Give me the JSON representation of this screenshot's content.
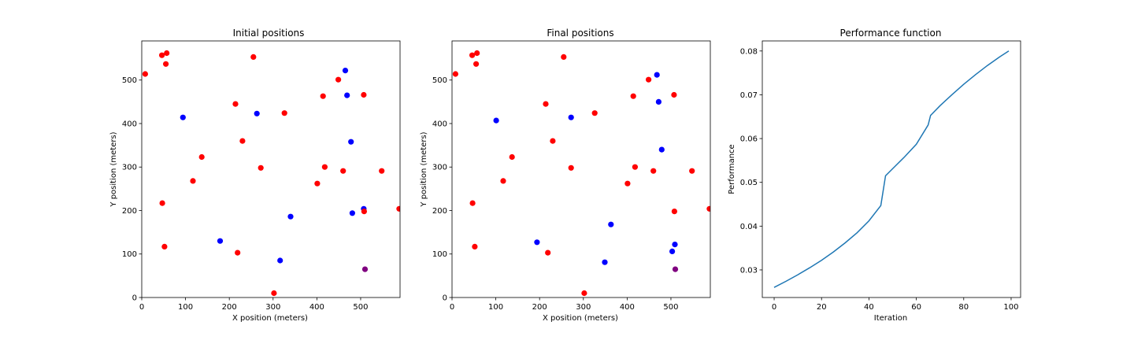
{
  "chart_data": [
    {
      "type": "scatter",
      "title": "Initial positions",
      "xlabel": "X position (meters)",
      "ylabel": "Y position (meters)",
      "xlim": [
        0,
        590
      ],
      "ylim": [
        0,
        590
      ],
      "xticks": [
        0,
        100,
        200,
        300,
        400,
        500
      ],
      "yticks": [
        0,
        100,
        200,
        300,
        400,
        500
      ],
      "grid": false,
      "colors": {
        "red": "#ff0000",
        "blue": "#0000ff",
        "purple": "#800080"
      },
      "points": [
        {
          "x": 8,
          "y": 514,
          "color": "red"
        },
        {
          "x": 46,
          "y": 557,
          "color": "red"
        },
        {
          "x": 57,
          "y": 562,
          "color": "red"
        },
        {
          "x": 55,
          "y": 537,
          "color": "red"
        },
        {
          "x": 255,
          "y": 553,
          "color": "red"
        },
        {
          "x": 465,
          "y": 522,
          "color": "blue"
        },
        {
          "x": 449,
          "y": 501,
          "color": "red"
        },
        {
          "x": 414,
          "y": 463,
          "color": "red"
        },
        {
          "x": 469,
          "y": 465,
          "color": "blue"
        },
        {
          "x": 507,
          "y": 466,
          "color": "red"
        },
        {
          "x": 94,
          "y": 414,
          "color": "blue"
        },
        {
          "x": 214,
          "y": 445,
          "color": "red"
        },
        {
          "x": 263,
          "y": 423,
          "color": "blue"
        },
        {
          "x": 326,
          "y": 424,
          "color": "red"
        },
        {
          "x": 230,
          "y": 360,
          "color": "red"
        },
        {
          "x": 478,
          "y": 358,
          "color": "blue"
        },
        {
          "x": 137,
          "y": 323,
          "color": "red"
        },
        {
          "x": 272,
          "y": 298,
          "color": "red"
        },
        {
          "x": 418,
          "y": 300,
          "color": "red"
        },
        {
          "x": 460,
          "y": 291,
          "color": "red"
        },
        {
          "x": 548,
          "y": 291,
          "color": "red"
        },
        {
          "x": 117,
          "y": 268,
          "color": "red"
        },
        {
          "x": 401,
          "y": 262,
          "color": "red"
        },
        {
          "x": 47,
          "y": 217,
          "color": "red"
        },
        {
          "x": 507,
          "y": 204,
          "color": "blue"
        },
        {
          "x": 508,
          "y": 198,
          "color": "red"
        },
        {
          "x": 481,
          "y": 194,
          "color": "blue"
        },
        {
          "x": 588,
          "y": 204,
          "color": "red"
        },
        {
          "x": 340,
          "y": 186,
          "color": "blue"
        },
        {
          "x": 179,
          "y": 130,
          "color": "blue"
        },
        {
          "x": 52,
          "y": 117,
          "color": "red"
        },
        {
          "x": 219,
          "y": 103,
          "color": "red"
        },
        {
          "x": 316,
          "y": 85,
          "color": "blue"
        },
        {
          "x": 510,
          "y": 65,
          "color": "purple"
        },
        {
          "x": 302,
          "y": 10,
          "color": "red"
        }
      ]
    },
    {
      "type": "scatter",
      "title": "Final positions",
      "xlabel": "X position (meters)",
      "ylabel": "Y position (meters)",
      "xlim": [
        0,
        590
      ],
      "ylim": [
        0,
        590
      ],
      "xticks": [
        0,
        100,
        200,
        300,
        400,
        500
      ],
      "yticks": [
        0,
        100,
        200,
        300,
        400,
        500
      ],
      "grid": false,
      "colors": {
        "red": "#ff0000",
        "blue": "#0000ff",
        "purple": "#800080"
      },
      "points": [
        {
          "x": 8,
          "y": 514,
          "color": "red"
        },
        {
          "x": 46,
          "y": 557,
          "color": "red"
        },
        {
          "x": 57,
          "y": 562,
          "color": "red"
        },
        {
          "x": 55,
          "y": 537,
          "color": "red"
        },
        {
          "x": 255,
          "y": 553,
          "color": "red"
        },
        {
          "x": 468,
          "y": 512,
          "color": "blue"
        },
        {
          "x": 449,
          "y": 501,
          "color": "red"
        },
        {
          "x": 414,
          "y": 463,
          "color": "red"
        },
        {
          "x": 472,
          "y": 450,
          "color": "blue"
        },
        {
          "x": 507,
          "y": 466,
          "color": "red"
        },
        {
          "x": 101,
          "y": 407,
          "color": "blue"
        },
        {
          "x": 214,
          "y": 445,
          "color": "red"
        },
        {
          "x": 272,
          "y": 414,
          "color": "blue"
        },
        {
          "x": 326,
          "y": 424,
          "color": "red"
        },
        {
          "x": 230,
          "y": 360,
          "color": "red"
        },
        {
          "x": 479,
          "y": 340,
          "color": "blue"
        },
        {
          "x": 137,
          "y": 323,
          "color": "red"
        },
        {
          "x": 272,
          "y": 298,
          "color": "red"
        },
        {
          "x": 418,
          "y": 300,
          "color": "red"
        },
        {
          "x": 460,
          "y": 291,
          "color": "red"
        },
        {
          "x": 548,
          "y": 291,
          "color": "red"
        },
        {
          "x": 117,
          "y": 268,
          "color": "red"
        },
        {
          "x": 401,
          "y": 262,
          "color": "red"
        },
        {
          "x": 47,
          "y": 217,
          "color": "red"
        },
        {
          "x": 508,
          "y": 198,
          "color": "red"
        },
        {
          "x": 588,
          "y": 204,
          "color": "red"
        },
        {
          "x": 363,
          "y": 168,
          "color": "blue"
        },
        {
          "x": 194,
          "y": 127,
          "color": "blue"
        },
        {
          "x": 52,
          "y": 117,
          "color": "red"
        },
        {
          "x": 509,
          "y": 122,
          "color": "blue"
        },
        {
          "x": 503,
          "y": 106,
          "color": "blue"
        },
        {
          "x": 219,
          "y": 103,
          "color": "red"
        },
        {
          "x": 349,
          "y": 81,
          "color": "blue"
        },
        {
          "x": 510,
          "y": 65,
          "color": "purple"
        },
        {
          "x": 302,
          "y": 10,
          "color": "red"
        }
      ]
    },
    {
      "type": "line",
      "title": "Performance function",
      "xlabel": "Iteration",
      "ylabel": "Performance",
      "xlim": [
        -5,
        104
      ],
      "ylim": [
        0.0237,
        0.0823
      ],
      "xticks": [
        0,
        20,
        40,
        60,
        80,
        100
      ],
      "yticks": [
        0.03,
        0.04,
        0.05,
        0.06,
        0.07,
        0.08
      ],
      "grid": false,
      "colors": {
        "line": "#1f77b4"
      },
      "x": [
        0,
        5,
        10,
        15,
        20,
        25,
        30,
        35,
        40,
        45,
        47,
        50,
        55,
        60,
        65,
        66,
        70,
        75,
        80,
        85,
        90,
        95,
        99
      ],
      "y": [
        0.026,
        0.0274,
        0.0289,
        0.0305,
        0.0322,
        0.0341,
        0.0362,
        0.0385,
        0.0412,
        0.0447,
        0.0515,
        0.0531,
        0.0558,
        0.0587,
        0.0631,
        0.0653,
        0.0675,
        0.07,
        0.0724,
        0.0746,
        0.0767,
        0.0786,
        0.08
      ]
    }
  ]
}
